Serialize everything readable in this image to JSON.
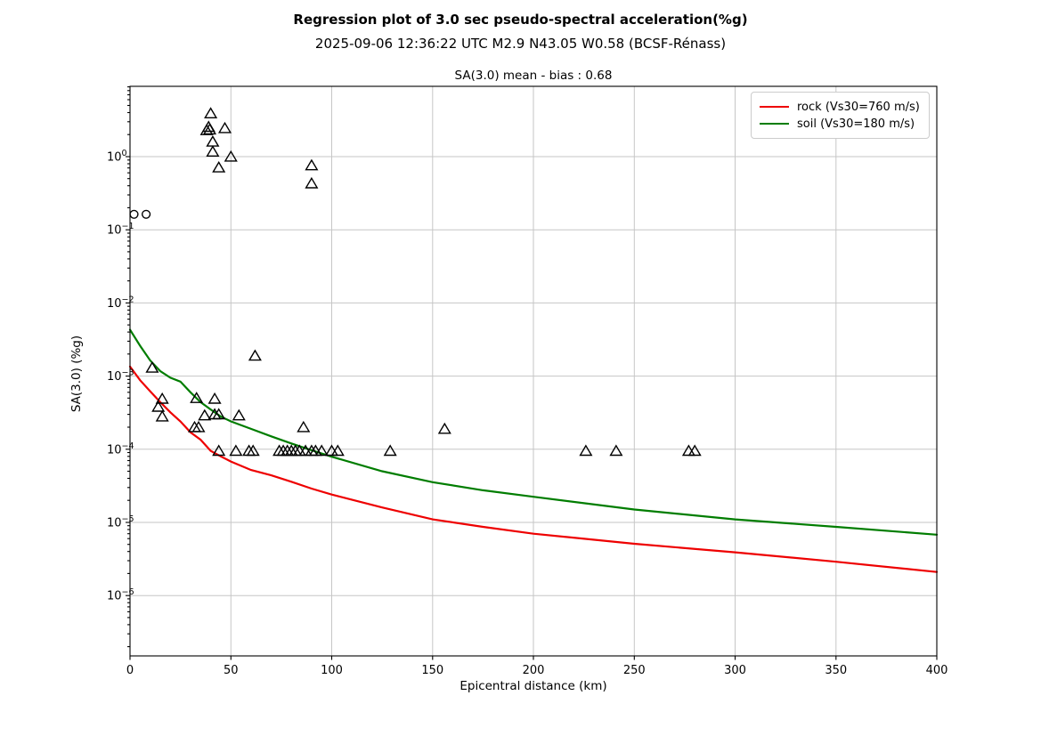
{
  "figure": {
    "title": "Regression plot of 3.0 sec pseudo-spectral acceleration(%g)",
    "subtitle": "2025-09-06 12:36:22 UTC M2.9 N43.05 W0.58 (BCSF-Rénass)",
    "axes_title": "SA(3.0) mean - bias : 0.68"
  },
  "chart_data": {
    "type": "scatter",
    "title": "SA(3.0) mean - bias : 0.68",
    "xlabel": "Epicentral distance (km)",
    "ylabel": "SA(3.0) (%g)",
    "x_scale": "linear",
    "y_scale": "log",
    "xlim": [
      0,
      400
    ],
    "ylim_log10": [
      -6.825,
      0.961
    ],
    "x_ticks": [
      0,
      50,
      100,
      150,
      200,
      250,
      300,
      350,
      400
    ],
    "y_tick_exponents": [
      0,
      -1,
      -2,
      -3,
      -4,
      -5,
      -6
    ],
    "grid": true,
    "legend_position": "upper right",
    "colors": {
      "grid": "#c6c6c6",
      "axis": "#000000",
      "marker_edge": "#000000",
      "rock": "#ee0000",
      "soil": "#007d00"
    },
    "lines": [
      {
        "name": "rock",
        "label": "rock (Vs30=760 m/s)",
        "color": "#ee0000",
        "points": [
          [
            0,
            0.00135
          ],
          [
            5,
            0.00088
          ],
          [
            10,
            0.00062
          ],
          [
            15,
            0.00044
          ],
          [
            20,
            0.00032
          ],
          [
            25,
            0.00024
          ],
          [
            30,
            0.00017
          ],
          [
            35,
            0.000135
          ],
          [
            40,
            9.5e-05
          ],
          [
            45,
            8e-05
          ],
          [
            50,
            6.8e-05
          ],
          [
            60,
            5.2e-05
          ],
          [
            70,
            4.4e-05
          ],
          [
            80,
            3.6e-05
          ],
          [
            90,
            2.9e-05
          ],
          [
            100,
            2.4e-05
          ],
          [
            125,
            1.6e-05
          ],
          [
            150,
            1.1e-05
          ],
          [
            175,
            8.7e-06
          ],
          [
            200,
            7e-06
          ],
          [
            250,
            5.1e-06
          ],
          [
            300,
            3.9e-06
          ],
          [
            350,
            2.9e-06
          ],
          [
            400,
            2.1e-06
          ]
        ]
      },
      {
        "name": "soil",
        "label": "soil (Vs30=180 m/s)",
        "color": "#007d00",
        "points": [
          [
            0,
            0.0043
          ],
          [
            5,
            0.0026
          ],
          [
            10,
            0.00163
          ],
          [
            15,
            0.00117
          ],
          [
            20,
            0.00095
          ],
          [
            25,
            0.00084
          ],
          [
            30,
            0.0006
          ],
          [
            35,
            0.00044
          ],
          [
            40,
            0.00035
          ],
          [
            45,
            0.00028
          ],
          [
            50,
            0.00024
          ],
          [
            60,
            0.00019
          ],
          [
            70,
            0.00015
          ],
          [
            80,
            0.00012
          ],
          [
            90,
            9.7e-05
          ],
          [
            100,
            7.9e-05
          ],
          [
            125,
            5e-05
          ],
          [
            150,
            3.55e-05
          ],
          [
            175,
            2.75e-05
          ],
          [
            200,
            2.24e-05
          ],
          [
            250,
            1.5e-05
          ],
          [
            300,
            1.1e-05
          ],
          [
            350,
            8.7e-06
          ],
          [
            400,
            6.8e-06
          ]
        ]
      }
    ],
    "scatter": [
      {
        "name": "station-triangles",
        "marker": "triangle-up",
        "points": [
          [
            40,
            3.9
          ],
          [
            38,
            2.3
          ],
          [
            39,
            2.55
          ],
          [
            39.5,
            2.35
          ],
          [
            47,
            2.45
          ],
          [
            41,
            1.6
          ],
          [
            41,
            1.17
          ],
          [
            50,
            1.0
          ],
          [
            44,
            0.71
          ],
          [
            90,
            0.76
          ],
          [
            90,
            0.43
          ],
          [
            11,
            0.0013
          ],
          [
            62,
            0.0019
          ],
          [
            16,
            0.00049
          ],
          [
            14,
            0.00038
          ],
          [
            16,
            0.00028
          ],
          [
            33,
            0.0005
          ],
          [
            42,
            0.00049
          ],
          [
            37,
            0.00029
          ],
          [
            42,
            0.0003
          ],
          [
            44,
            0.0003
          ],
          [
            54,
            0.00029
          ],
          [
            32,
            0.0002
          ],
          [
            34,
            0.0002
          ],
          [
            86,
            0.0002
          ],
          [
            156,
            0.00019
          ],
          [
            44,
            9.5e-05
          ],
          [
            52.5,
            9.5e-05
          ],
          [
            59,
            9.5e-05
          ],
          [
            61,
            9.5e-05
          ],
          [
            74,
            9.5e-05
          ],
          [
            76,
            9.5e-05
          ],
          [
            78,
            9.5e-05
          ],
          [
            80,
            9.5e-05
          ],
          [
            82,
            9.5e-05
          ],
          [
            84,
            9.5e-05
          ],
          [
            87,
            9.5e-05
          ],
          [
            90,
            9.5e-05
          ],
          [
            92,
            9.5e-05
          ],
          [
            95,
            9.5e-05
          ],
          [
            100,
            9.5e-05
          ],
          [
            103,
            9.5e-05
          ],
          [
            129,
            9.5e-05
          ],
          [
            226,
            9.5e-05
          ],
          [
            241,
            9.5e-05
          ],
          [
            277,
            9.5e-05
          ],
          [
            280,
            9.5e-05
          ]
        ]
      },
      {
        "name": "station-circles",
        "marker": "circle",
        "points": [
          [
            2,
            0.163
          ],
          [
            8,
            0.163
          ]
        ]
      }
    ]
  }
}
